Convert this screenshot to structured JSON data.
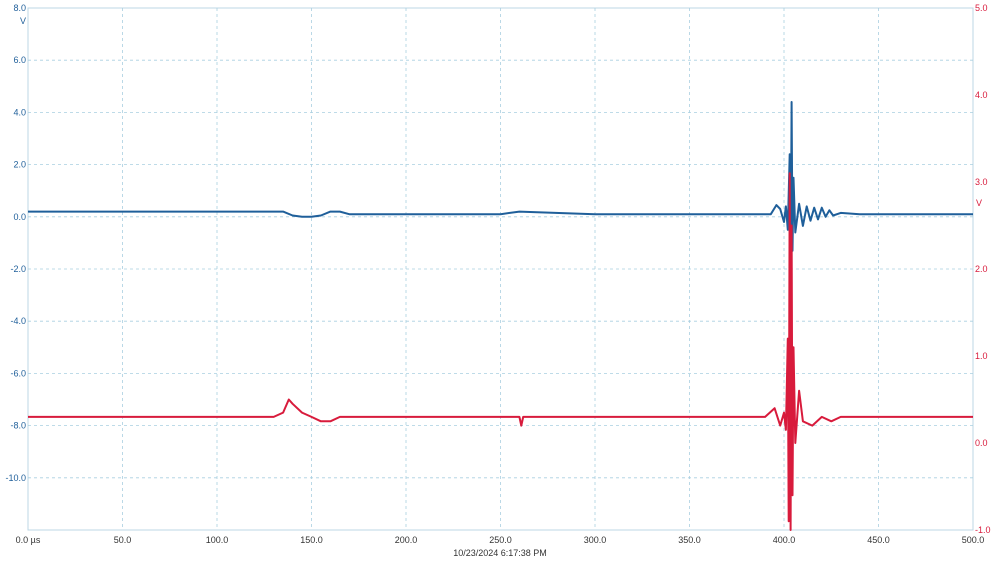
{
  "timestamp": "10/23/2024 6:17:38 PM",
  "chart_data": {
    "type": "line",
    "x_unit": "µs",
    "xlim": [
      0,
      500
    ],
    "x_ticks": [
      "0.0 µs",
      "50.0",
      "100.0",
      "150.0",
      "200.0",
      "250.0",
      "300.0",
      "350.0",
      "400.0",
      "450.0",
      "500.0"
    ],
    "x_tick_values": [
      0,
      50,
      100,
      150,
      200,
      250,
      300,
      350,
      400,
      450,
      500
    ],
    "grid": true,
    "left_axis": {
      "unit": "V",
      "ylim": [
        -12,
        8
      ],
      "ticks": [
        "8.0",
        "6.0",
        "4.0",
        "2.0",
        "0.0",
        "-2.0",
        "-4.0",
        "-6.0",
        "-8.0",
        "-10.0"
      ],
      "tick_values": [
        8,
        6,
        4,
        2,
        0,
        -2,
        -4,
        -6,
        -8,
        -10
      ],
      "color": "#1f5f9a"
    },
    "right_axis": {
      "unit": "V",
      "ylim": [
        -1,
        5
      ],
      "ticks": [
        "5.0",
        "4.0",
        "3.0",
        "2.0",
        "1.0",
        "0.0",
        "-1.0"
      ],
      "tick_values": [
        5,
        4,
        3,
        2,
        1,
        0,
        -1
      ],
      "color": "#d81b3c"
    },
    "series": [
      {
        "axis": "left",
        "color": "#1f5f9a",
        "x": [
          0,
          135,
          140,
          145,
          150,
          155,
          160,
          165,
          170,
          180,
          250,
          260,
          300,
          380,
          393,
          396,
          398,
          400,
          401,
          402,
          403,
          403.5,
          404,
          404.5,
          405,
          406,
          408,
          410,
          412,
          414,
          416,
          418,
          420,
          422,
          424,
          426,
          430,
          440,
          450,
          460,
          500
        ],
        "y": [
          0.2,
          0.2,
          0.05,
          0.0,
          0.0,
          0.05,
          0.2,
          0.2,
          0.1,
          0.1,
          0.1,
          0.2,
          0.1,
          0.1,
          0.1,
          0.45,
          0.3,
          -0.2,
          0.4,
          -0.5,
          2.4,
          -2.8,
          4.4,
          -1.3,
          1.5,
          -0.6,
          0.5,
          -0.35,
          0.4,
          -0.15,
          0.35,
          -0.1,
          0.35,
          0.0,
          0.25,
          0.05,
          0.15,
          0.1,
          0.1,
          0.1,
          0.1
        ]
      },
      {
        "axis": "right",
        "color": "#d81b3c",
        "x": [
          0,
          130,
          135,
          138,
          140,
          145,
          150,
          155,
          160,
          165,
          170,
          200,
          260,
          261,
          262,
          300,
          390,
          395,
          398,
          400,
          401,
          402,
          402.5,
          403,
          403.5,
          404,
          404.5,
          405,
          406,
          408,
          410,
          415,
          420,
          425,
          430,
          440,
          450,
          500
        ],
        "y": [
          0.3,
          0.3,
          0.35,
          0.5,
          0.45,
          0.35,
          0.3,
          0.25,
          0.25,
          0.3,
          0.3,
          0.3,
          0.3,
          0.2,
          0.3,
          0.3,
          0.3,
          0.4,
          0.2,
          0.35,
          0.15,
          1.2,
          -0.9,
          3.1,
          -1.0,
          2.5,
          -0.6,
          1.1,
          0.0,
          0.6,
          0.25,
          0.2,
          0.3,
          0.25,
          0.3,
          0.3,
          0.3,
          0.3
        ]
      }
    ]
  }
}
